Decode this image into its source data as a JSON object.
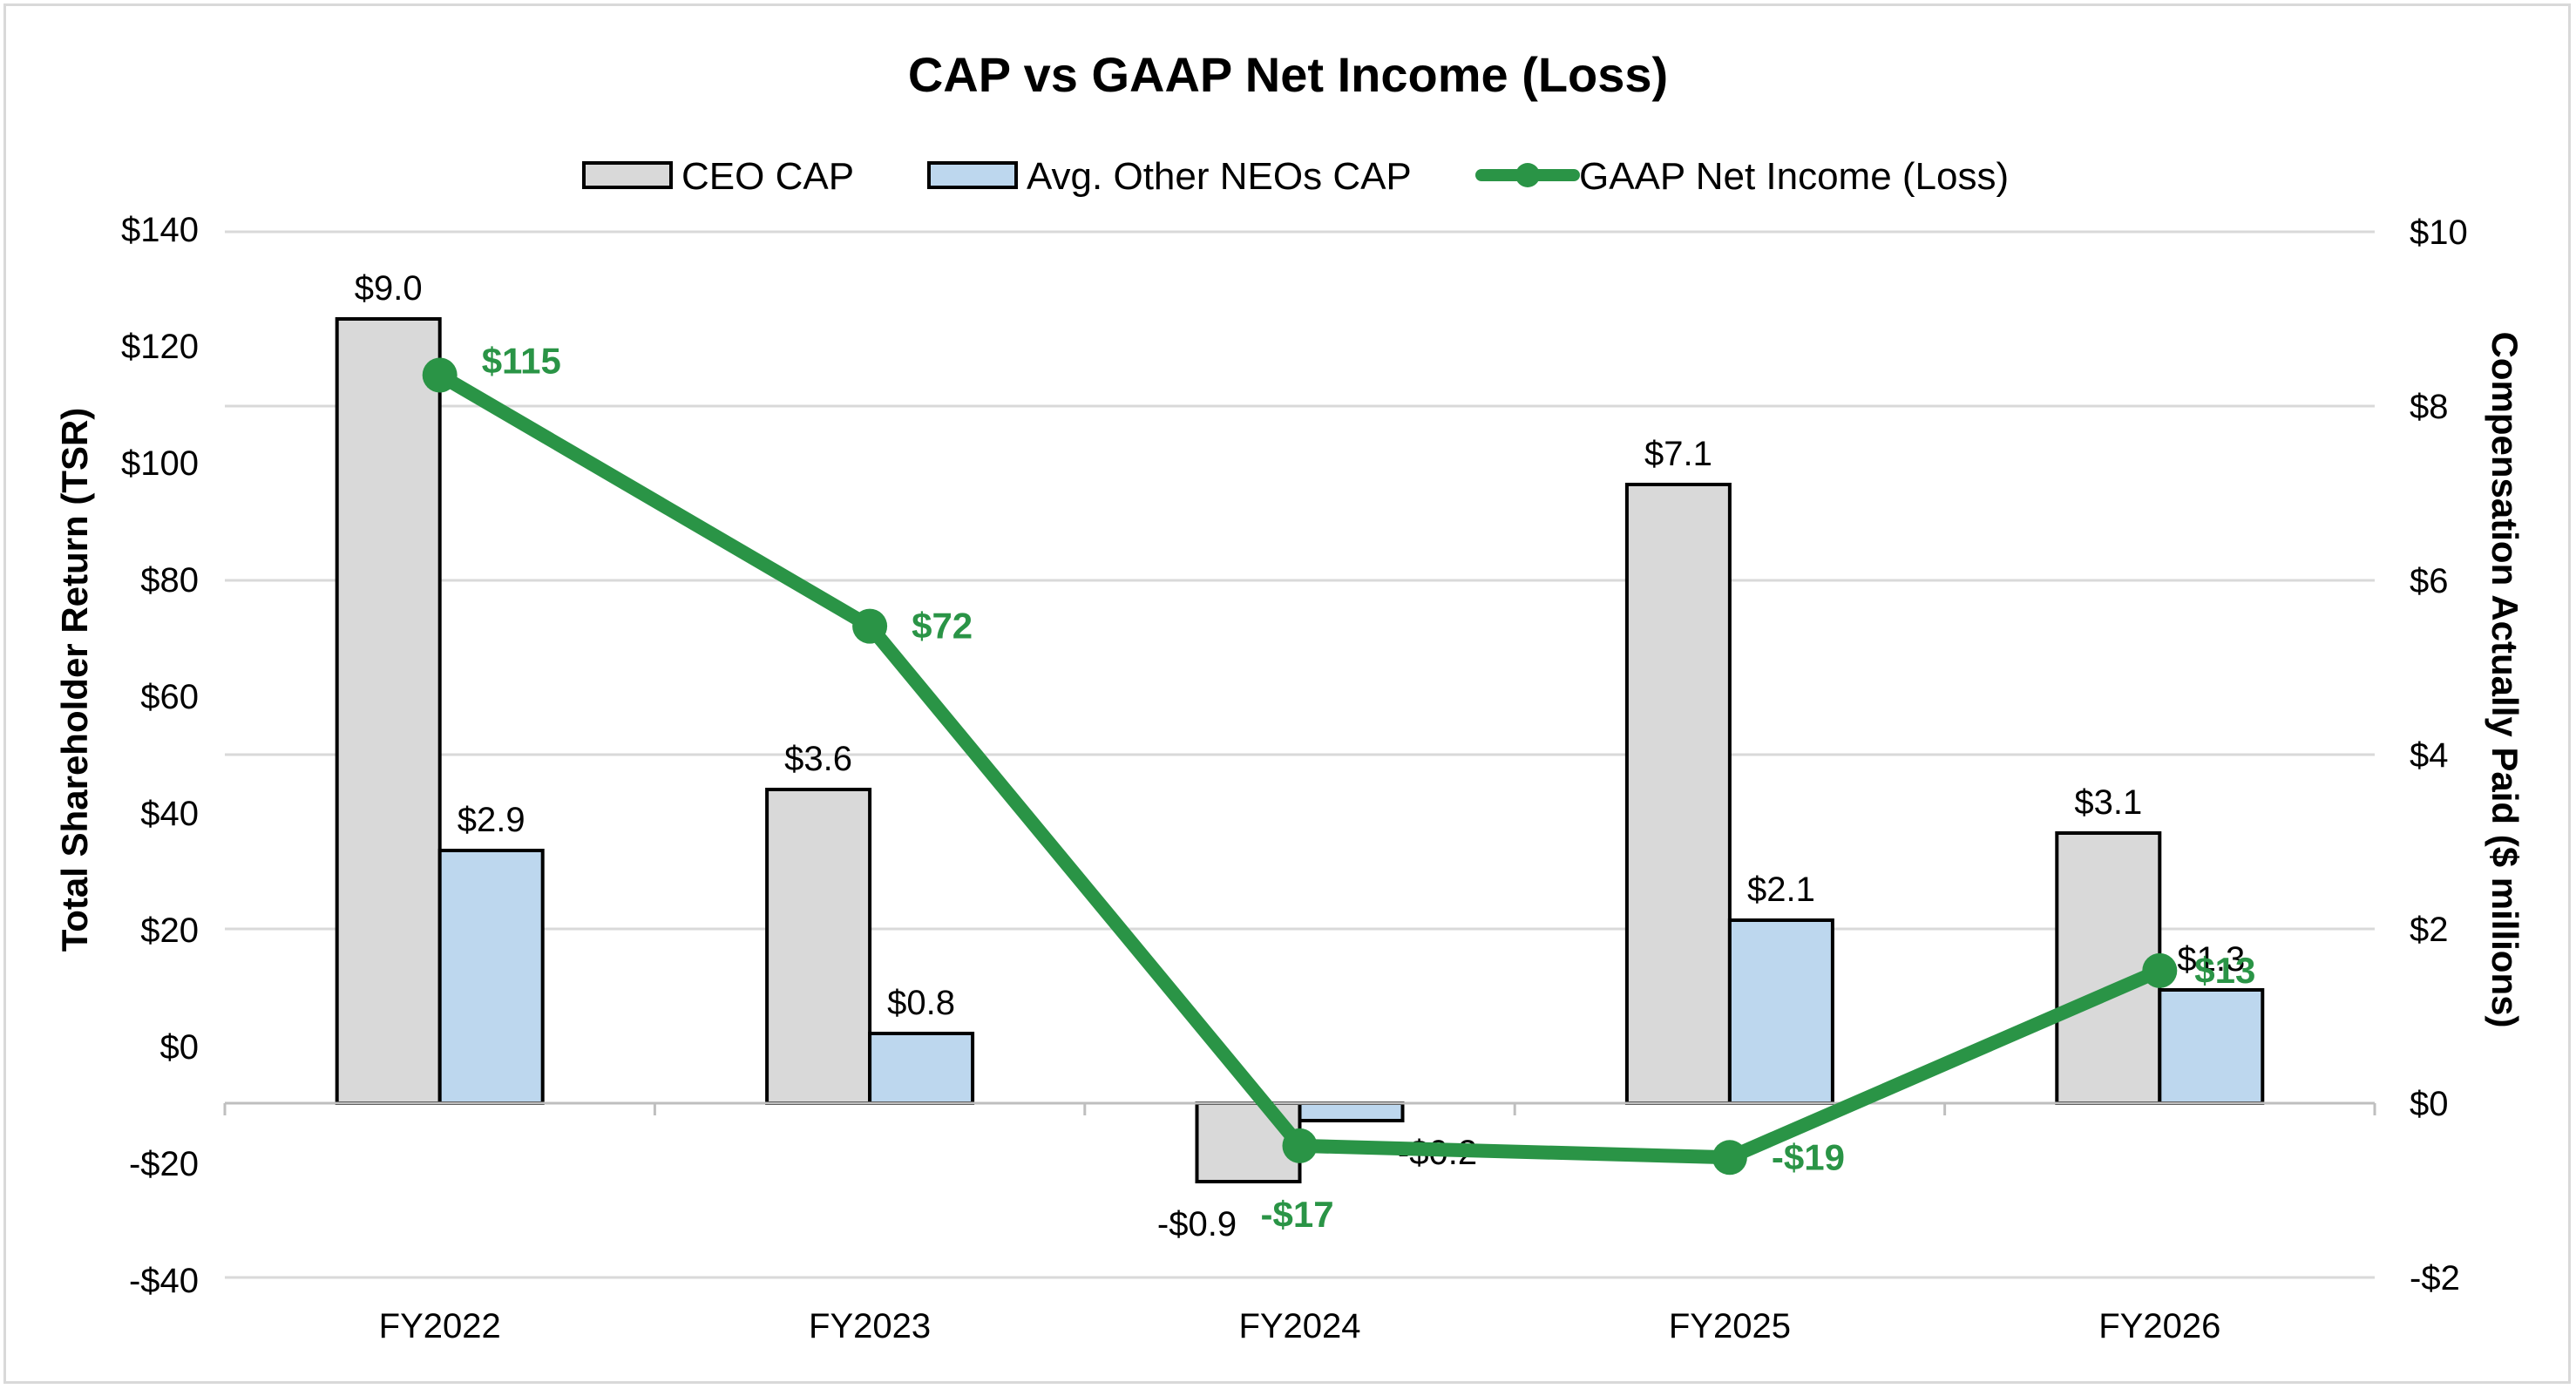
{
  "chart_data": {
    "type": "bar",
    "title": "CAP vs GAAP Net Income (Loss)",
    "categories": [
      "FY2022",
      "FY2023",
      "FY2024",
      "FY2025",
      "FY2026"
    ],
    "left_axis": {
      "label": "Total Shareholder Return (TSR)",
      "range": [
        -40,
        140
      ],
      "ticks": [
        -40,
        -20,
        0,
        20,
        40,
        60,
        80,
        100,
        120,
        140
      ],
      "tick_labels": [
        "-$40",
        "-$20",
        "$0",
        "$20",
        "$40",
        "$60",
        "$80",
        "$100",
        "$120",
        "$140"
      ]
    },
    "right_axis": {
      "label": "Compensation Actually Paid ($ millions)",
      "range": [
        -2,
        10
      ],
      "ticks": [
        -2,
        0,
        2,
        4,
        6,
        8,
        10
      ],
      "tick_labels": [
        "-$2",
        "$0",
        "$2",
        "$4",
        "$6",
        "$8",
        "$10"
      ]
    },
    "series": [
      {
        "name": "CEO CAP",
        "type": "bar",
        "axis": "right",
        "color": "#d9d9d9",
        "values": [
          9.0,
          3.6,
          -0.9,
          7.1,
          3.1
        ],
        "labels": [
          "$9.0",
          "$3.6",
          "-$0.9",
          "$7.1",
          "$3.1"
        ]
      },
      {
        "name": "Avg. Other NEOs CAP",
        "type": "bar",
        "axis": "right",
        "color": "#bdd7ee",
        "values": [
          2.9,
          0.8,
          -0.2,
          2.1,
          1.3
        ],
        "labels": [
          "$2.9",
          "$0.8",
          "-$0.2",
          "$2.1",
          "$1.3"
        ]
      },
      {
        "name": "GAAP Net Income (Loss)",
        "type": "line",
        "axis": "left",
        "color": "#2a9446",
        "values": [
          115,
          72,
          -17,
          -19,
          13
        ],
        "labels": [
          "$115",
          "$72",
          "-$17",
          "-$19",
          "$13"
        ]
      }
    ],
    "grid": true,
    "legend_position": "top"
  }
}
